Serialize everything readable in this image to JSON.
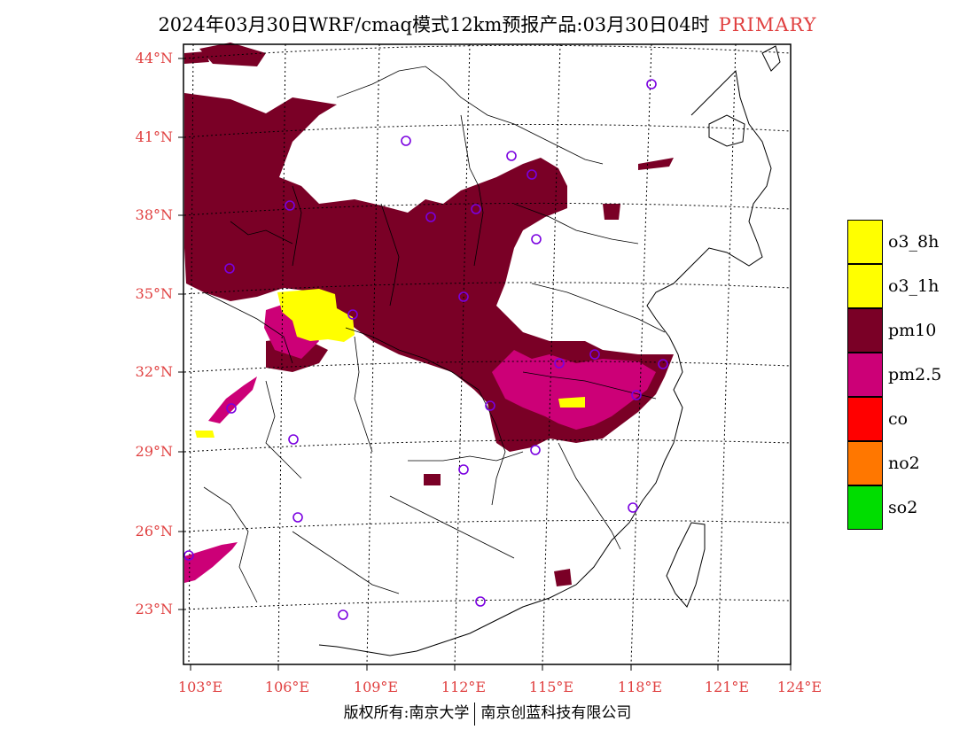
{
  "title": {
    "main": "2024年03月30日WRF/cmaq模式12km预报产品:03月30日04时",
    "tag": "PRIMARY"
  },
  "footer": {
    "left": "版权所有:南京大学",
    "right": "南京创蓝科技有限公司"
  },
  "lat_labels": [
    "44°N",
    "41°N",
    "38°N",
    "35°N",
    "32°N",
    "29°N",
    "26°N",
    "23°N"
  ],
  "lon_labels": [
    "103°E",
    "106°E",
    "109°E",
    "112°E",
    "115°E",
    "118°E",
    "121°E",
    "124°E"
  ],
  "legend": [
    {
      "label": "o3_8h",
      "color": "#ffff00"
    },
    {
      "label": "o3_1h",
      "color": "#ffff00"
    },
    {
      "label": "pm10",
      "color": "#7a0026"
    },
    {
      "label": "pm2.5",
      "color": "#cc0077"
    },
    {
      "label": "co",
      "color": "#ff0000"
    },
    {
      "label": "no2",
      "color": "#ff7700"
    },
    {
      "label": "so2",
      "color": "#00dd00"
    }
  ]
}
